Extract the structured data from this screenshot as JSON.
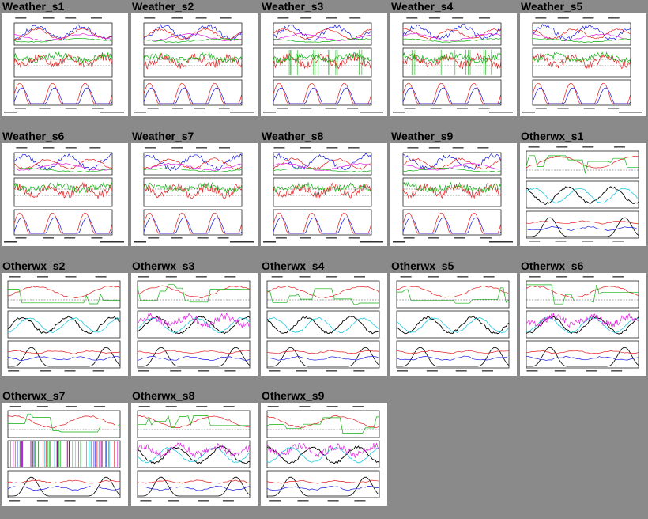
{
  "tiles": [
    {
      "title": "Weather_s1",
      "kind": "weather"
    },
    {
      "title": "Weather_s2",
      "kind": "weather"
    },
    {
      "title": "Weather_s3",
      "kind": "weather"
    },
    {
      "title": "Weather_s4",
      "kind": "weather"
    },
    {
      "title": "Weather_s5",
      "kind": "weather"
    },
    {
      "title": "Weather_s6",
      "kind": "weather"
    },
    {
      "title": "Weather_s7",
      "kind": "weather"
    },
    {
      "title": "Weather_s8",
      "kind": "weather"
    },
    {
      "title": "Weather_s9",
      "kind": "weather"
    },
    {
      "title": "Otherwx_s1",
      "kind": "otherwx"
    },
    {
      "title": "Otherwx_s2",
      "kind": "otherwx"
    },
    {
      "title": "Otherwx_s3",
      "kind": "otherwx"
    },
    {
      "title": "Otherwx_s4",
      "kind": "otherwx"
    },
    {
      "title": "Otherwx_s5",
      "kind": "otherwx"
    },
    {
      "title": "Otherwx_s6",
      "kind": "otherwx"
    },
    {
      "title": "Otherwx_s7",
      "kind": "otherwx"
    },
    {
      "title": "Otherwx_s8",
      "kind": "otherwx"
    },
    {
      "title": "Otherwx_s9",
      "kind": "otherwx"
    }
  ],
  "colors": {
    "background": "#8a8a8a",
    "red": "#e02020",
    "blue": "#1a1ae0",
    "green": "#10b010",
    "magenta": "#e020e0",
    "cyan": "#20c8e0",
    "black": "#000000"
  }
}
